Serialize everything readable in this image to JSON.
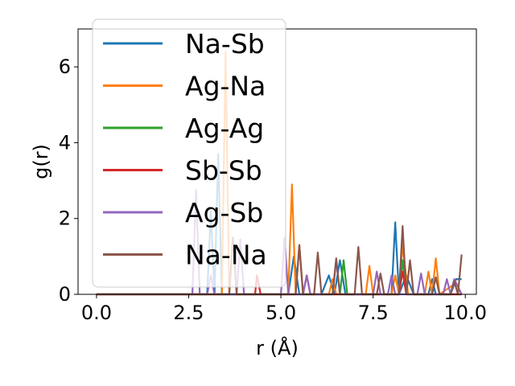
{
  "chart_data": {
    "type": "line",
    "xlabel": "r (Å)",
    "ylabel": "g(r)",
    "xlim": [
      -0.5,
      10.3
    ],
    "ylim": [
      0,
      7
    ],
    "xticks": [
      0.0,
      2.5,
      5.0,
      7.5,
      10.0
    ],
    "xtick_labels": [
      "0.0",
      "2.5",
      "5.0",
      "7.5",
      "10.0"
    ],
    "yticks": [
      0,
      2,
      4,
      6
    ],
    "ytick_labels": [
      "0",
      "2",
      "4",
      "6"
    ],
    "grid": false,
    "legend_position": "upper-left",
    "series": [
      {
        "name": "Na-Sb",
        "color": "#1f77b4",
        "points": [
          [
            0,
            0
          ],
          [
            3.0,
            0
          ],
          [
            3.1,
            2.2
          ],
          [
            3.2,
            0
          ],
          [
            3.3,
            3.7
          ],
          [
            3.4,
            0
          ],
          [
            5.2,
            0
          ],
          [
            5.35,
            1.0
          ],
          [
            5.5,
            0
          ],
          [
            6.1,
            0
          ],
          [
            6.3,
            0.5
          ],
          [
            6.45,
            0
          ],
          [
            6.6,
            0.9
          ],
          [
            6.75,
            0
          ],
          [
            8.0,
            0
          ],
          [
            8.1,
            1.9
          ],
          [
            8.2,
            0
          ],
          [
            8.4,
            0.5
          ],
          [
            8.6,
            0
          ],
          [
            9.0,
            0
          ],
          [
            9.1,
            0.4
          ],
          [
            9.2,
            0
          ],
          [
            9.6,
            0
          ],
          [
            9.75,
            0.4
          ],
          [
            9.9,
            0.4
          ]
        ]
      },
      {
        "name": "Ag-Na",
        "color": "#ff7f0e",
        "points": [
          [
            0,
            0
          ],
          [
            3.4,
            0
          ],
          [
            3.5,
            6.4
          ],
          [
            3.6,
            0
          ],
          [
            5.2,
            0
          ],
          [
            5.3,
            2.9
          ],
          [
            5.4,
            0
          ],
          [
            5.5,
            1.3
          ],
          [
            5.6,
            0
          ],
          [
            6.3,
            0
          ],
          [
            6.4,
            0.4
          ],
          [
            6.5,
            0
          ],
          [
            7.3,
            0
          ],
          [
            7.4,
            0.75
          ],
          [
            7.5,
            0
          ],
          [
            8.0,
            0
          ],
          [
            8.1,
            0.5
          ],
          [
            8.2,
            0
          ],
          [
            8.3,
            1.3
          ],
          [
            8.45,
            0
          ],
          [
            8.9,
            0
          ],
          [
            9.0,
            0.6
          ],
          [
            9.1,
            0
          ],
          [
            9.2,
            0.95
          ],
          [
            9.3,
            0
          ],
          [
            9.75,
            0.3
          ],
          [
            9.9,
            0
          ]
        ]
      },
      {
        "name": "Ag-Ag",
        "color": "#2ca02c",
        "points": [
          [
            0,
            0
          ],
          [
            6.6,
            0
          ],
          [
            6.7,
            0.9
          ],
          [
            6.8,
            0
          ],
          [
            8.2,
            0
          ],
          [
            8.3,
            0.9
          ],
          [
            8.4,
            0
          ],
          [
            9.9,
            0
          ]
        ]
      },
      {
        "name": "Sb-Sb",
        "color": "#d62728",
        "points": [
          [
            0,
            0
          ],
          [
            4.3,
            0
          ],
          [
            4.35,
            0.5
          ],
          [
            4.45,
            0
          ],
          [
            5.6,
            0
          ],
          [
            5.7,
            0.5
          ],
          [
            5.8,
            0
          ],
          [
            8.2,
            0
          ],
          [
            8.3,
            0.6
          ],
          [
            8.4,
            0
          ],
          [
            9.9,
            0
          ]
        ]
      },
      {
        "name": "Ag-Sb",
        "color": "#9467bd",
        "points": [
          [
            0,
            0
          ],
          [
            2.6,
            0
          ],
          [
            2.7,
            2.75
          ],
          [
            2.8,
            0
          ],
          [
            3.0,
            0
          ],
          [
            3.1,
            0.5
          ],
          [
            3.2,
            0
          ],
          [
            3.8,
            0
          ],
          [
            3.9,
            1.45
          ],
          [
            4.0,
            0
          ],
          [
            5.0,
            0
          ],
          [
            5.1,
            1.5
          ],
          [
            5.2,
            0
          ],
          [
            5.6,
            0
          ],
          [
            5.7,
            0.5
          ],
          [
            5.8,
            0
          ],
          [
            6.4,
            0
          ],
          [
            6.5,
            0.9
          ],
          [
            6.6,
            0
          ],
          [
            7.5,
            0
          ],
          [
            7.6,
            0.6
          ],
          [
            7.7,
            0
          ],
          [
            7.9,
            0
          ],
          [
            8.0,
            0.5
          ],
          [
            8.1,
            0
          ],
          [
            8.7,
            0
          ],
          [
            8.8,
            0.55
          ],
          [
            8.9,
            0
          ],
          [
            9.4,
            0
          ],
          [
            9.5,
            0.4
          ],
          [
            9.6,
            0
          ],
          [
            9.7,
            0.4
          ],
          [
            9.9,
            0
          ]
        ]
      },
      {
        "name": "Na-Na",
        "color": "#8c564b",
        "points": [
          [
            0,
            0
          ],
          [
            3.6,
            0
          ],
          [
            3.7,
            1.5
          ],
          [
            3.8,
            0
          ],
          [
            5.4,
            0
          ],
          [
            5.5,
            1.3
          ],
          [
            5.6,
            0
          ],
          [
            5.9,
            0
          ],
          [
            6.0,
            1.1
          ],
          [
            6.1,
            0
          ],
          [
            6.4,
            0
          ],
          [
            6.5,
            0.95
          ],
          [
            6.6,
            0
          ],
          [
            7.0,
            0
          ],
          [
            7.1,
            1.25
          ],
          [
            7.2,
            0
          ],
          [
            7.6,
            0
          ],
          [
            7.7,
            0.55
          ],
          [
            7.8,
            0
          ],
          [
            8.2,
            0
          ],
          [
            8.3,
            1.8
          ],
          [
            8.4,
            0
          ],
          [
            8.5,
            0.9
          ],
          [
            8.6,
            0
          ],
          [
            9.1,
            0
          ],
          [
            9.2,
            0.45
          ],
          [
            9.3,
            0
          ],
          [
            9.6,
            0
          ],
          [
            9.7,
            0.35
          ],
          [
            9.8,
            0
          ],
          [
            9.9,
            1.05
          ]
        ]
      }
    ]
  }
}
